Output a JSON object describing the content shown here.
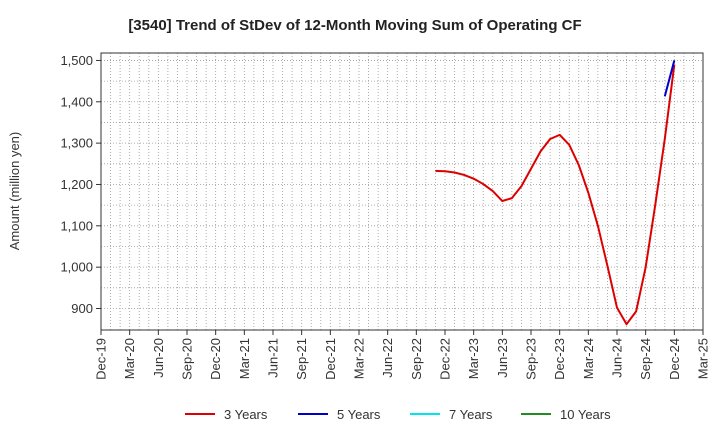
{
  "chart_data": {
    "type": "line",
    "title": "[3540]  Trend of StDev of 12-Month Moving Sum of Operating CF",
    "xlabel": "",
    "ylabel": "Amount (million yen)",
    "x_ticks": [
      "Dec-19",
      "Mar-20",
      "Jun-20",
      "Sep-20",
      "Dec-20",
      "Mar-21",
      "Jun-21",
      "Sep-21",
      "Dec-21",
      "Mar-22",
      "Jun-22",
      "Sep-22",
      "Dec-22",
      "Mar-23",
      "Jun-23",
      "Sep-23",
      "Dec-23",
      "Mar-24",
      "Jun-24",
      "Sep-24",
      "Dec-24",
      "Mar-25"
    ],
    "y_ticks": [
      900,
      1000,
      1100,
      1200,
      1300,
      1400,
      1500
    ],
    "y_tick_labels": [
      "900",
      "1,000",
      "1,100",
      "1,200",
      "1,300",
      "1,400",
      "1,500"
    ],
    "ylim": [
      848,
      1518
    ],
    "grid": true,
    "legend_position": "bottom",
    "series": [
      {
        "name": "3 Years",
        "color": "#dd0000",
        "x": [
          "2022-11",
          "2022-12",
          "2023-01",
          "2023-02",
          "2023-03",
          "2023-04",
          "2023-05",
          "2023-06",
          "2023-07",
          "2023-08",
          "2023-09",
          "2023-10",
          "2023-11",
          "2023-12",
          "2024-01",
          "2024-02",
          "2024-03",
          "2024-04",
          "2024-05",
          "2024-06",
          "2024-07",
          "2024-08",
          "2024-09",
          "2024-10",
          "2024-11",
          "2024-12"
        ],
        "y": [
          1233,
          1232,
          1229,
          1223,
          1214,
          1201,
          1184,
          1160,
          1167,
          1196,
          1238,
          1280,
          1310,
          1320,
          1296,
          1247,
          1180,
          1100,
          1003,
          902,
          862,
          893,
          1000,
          1150,
          1310,
          1490
        ]
      },
      {
        "name": "5 Years",
        "color": "#0000cc",
        "x": [
          "2024-11",
          "2024-12"
        ],
        "y": [
          1413,
          1500
        ]
      },
      {
        "name": "7 Years",
        "color": "#00e5ee",
        "x": [],
        "y": []
      },
      {
        "name": "10 Years",
        "color": "#228b22",
        "x": [],
        "y": []
      }
    ]
  }
}
